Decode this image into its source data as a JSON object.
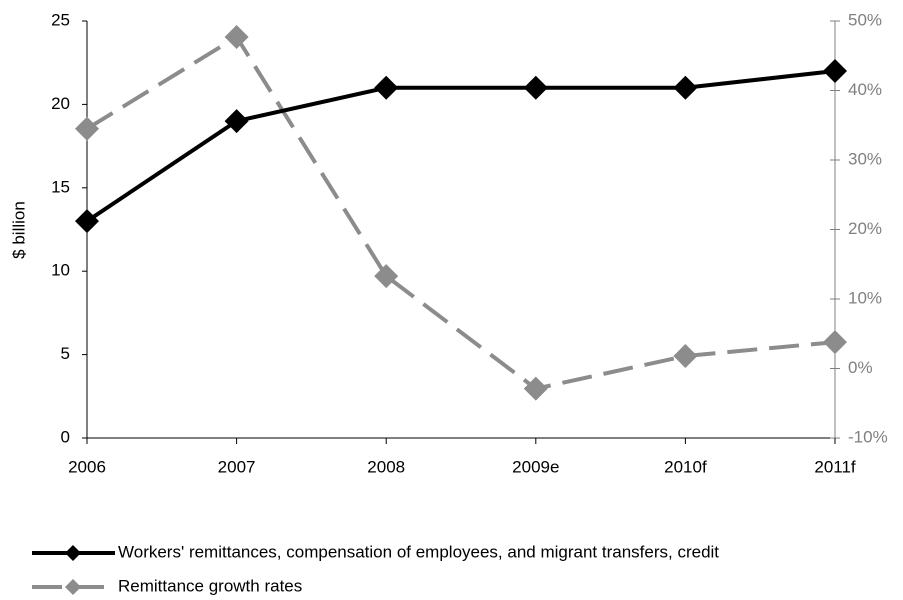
{
  "chart_data": {
    "type": "line",
    "categories": [
      "2006",
      "2007",
      "2008",
      "2009e",
      "2010f",
      "2011f"
    ],
    "y_label": "$ billion",
    "ylim": [
      0,
      25
    ],
    "yticks": [
      0,
      5,
      10,
      15,
      20,
      25
    ],
    "y2lim": [
      -10,
      50
    ],
    "y2ticks": [
      {
        "value": -10,
        "label": "-10%"
      },
      {
        "value": 0,
        "label": "0%"
      },
      {
        "value": 10,
        "label": "10%"
      },
      {
        "value": 20,
        "label": "20%"
      },
      {
        "value": 30,
        "label": "30%"
      },
      {
        "value": 40,
        "label": "40%"
      },
      {
        "value": 50,
        "label": "50%"
      }
    ],
    "series": [
      {
        "name": "Workers' remittances, compensation of employees, and migrant transfers, credit",
        "color": "#000000",
        "dashed": false,
        "axis": "y",
        "values": [
          13,
          19,
          21,
          21,
          21,
          22
        ]
      },
      {
        "name": "Remittance growth rates",
        "color": "#8c8c8c",
        "dashed": true,
        "axis": "y2",
        "values": [
          34.5,
          47.7,
          13.3,
          -2.9,
          1.8,
          3.8
        ]
      }
    ]
  }
}
